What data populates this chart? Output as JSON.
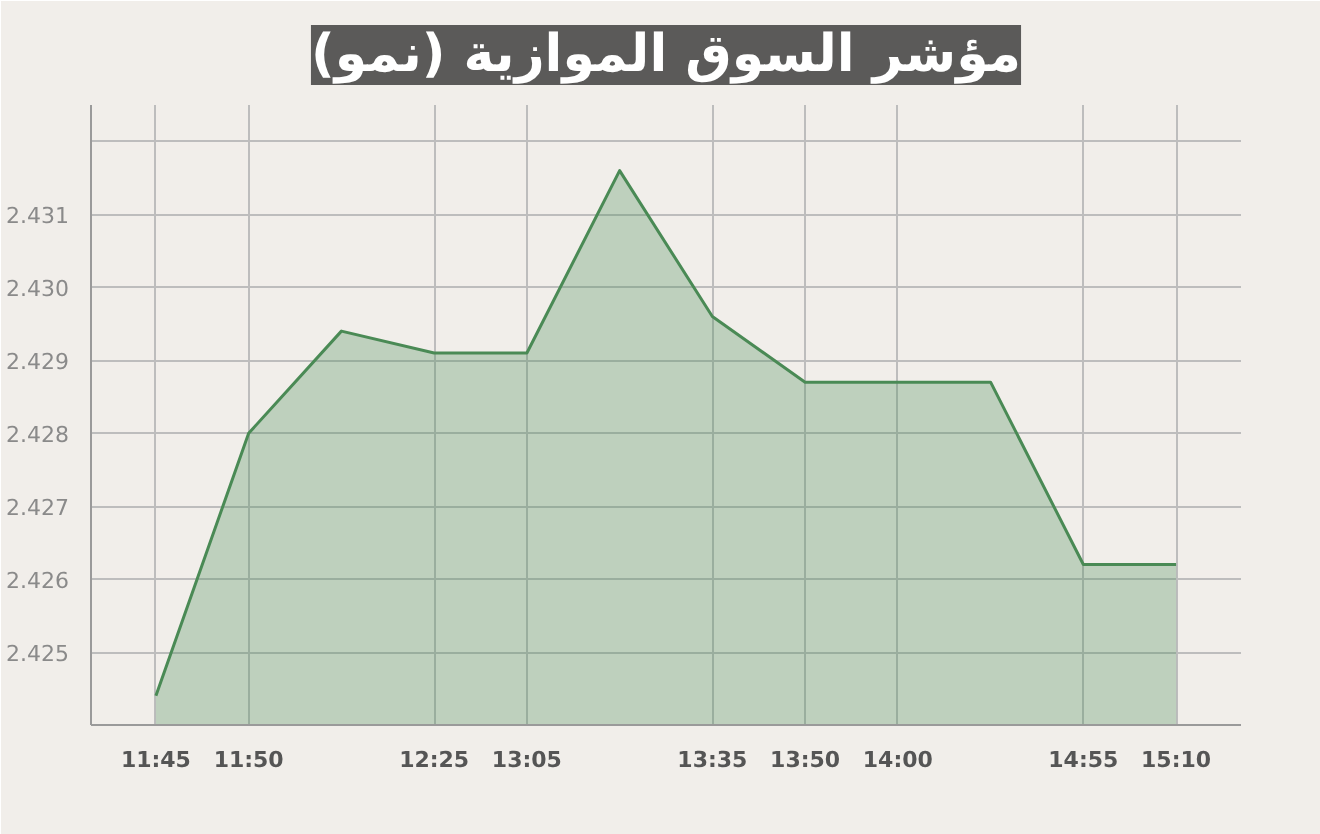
{
  "chart_data": {
    "type": "area",
    "title": "مؤشر السوق الموازية (نمو)",
    "categories": [
      "11:45",
      "11:50",
      null,
      "12:25",
      "13:05",
      null,
      "13:35",
      "13:50",
      "14:00",
      null,
      "14:55",
      "15:10"
    ],
    "series": [
      {
        "color": "#4a8a55",
        "values": [
          2.4244,
          2.428,
          2.4294,
          2.4291,
          2.4291,
          2.4316,
          2.4296,
          2.4287,
          2.4287,
          2.4287,
          2.4262,
          2.4262
        ]
      }
    ],
    "ylim": [
      2.424,
      2.4325
    ],
    "yticks": [
      2.425,
      2.426,
      2.427,
      2.428,
      2.429,
      {
        "value": 2.43,
        "label": "2.430"
      },
      2.431,
      {
        "value": 2.432,
        "label": null
      }
    ],
    "grid": true,
    "marker": "none",
    "line_style": "solid"
  }
}
